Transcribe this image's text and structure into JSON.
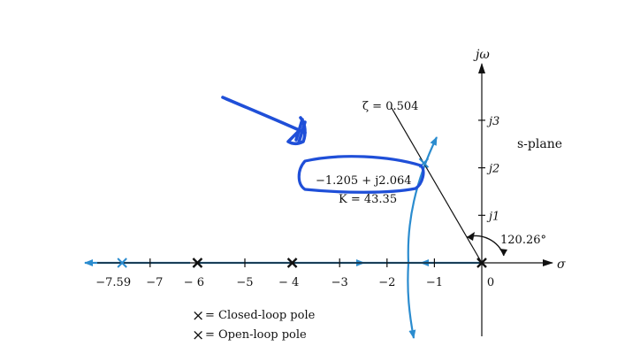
{
  "diagram": {
    "plane_label": "s-plane",
    "axis_labels": {
      "imag": "jω",
      "real": "σ"
    },
    "real_ticks": [
      {
        "value": -7.59,
        "label": "−7.59"
      },
      {
        "value": -7,
        "label": "−7"
      },
      {
        "value": -6,
        "label": "− 6"
      },
      {
        "value": -5,
        "label": "−5"
      },
      {
        "value": -4,
        "label": "− 4"
      },
      {
        "value": -3,
        "label": "−3"
      },
      {
        "value": -2,
        "label": "−2"
      },
      {
        "value": -1,
        "label": "−1"
      },
      {
        "value": 0,
        "label": "0"
      }
    ],
    "imag_ticks": [
      {
        "value": 1,
        "label": "j1"
      },
      {
        "value": 2,
        "label": "j2"
      },
      {
        "value": 3,
        "label": "j3"
      }
    ],
    "zeta_label": "ζ = 0.504",
    "angle_label": "120.26°",
    "point_label": "−1.205 + j2.064",
    "gain_label": "K = 43.35",
    "legend": [
      {
        "symbol": "×",
        "text": "= Closed-loop pole",
        "color": "#2b8ccf"
      },
      {
        "symbol": "×",
        "text": "= Open-loop pole",
        "color": "#111111"
      }
    ],
    "open_loop_poles": [
      0,
      -4,
      -6
    ],
    "closed_loop_poles_real": [
      -7.59
    ],
    "closed_loop_pole_complex": {
      "re": -1.205,
      "im": 2.064
    },
    "colors": {
      "locus": "#2b8ccf",
      "annotation": "#1f4fd8",
      "axis": "#111111"
    }
  }
}
